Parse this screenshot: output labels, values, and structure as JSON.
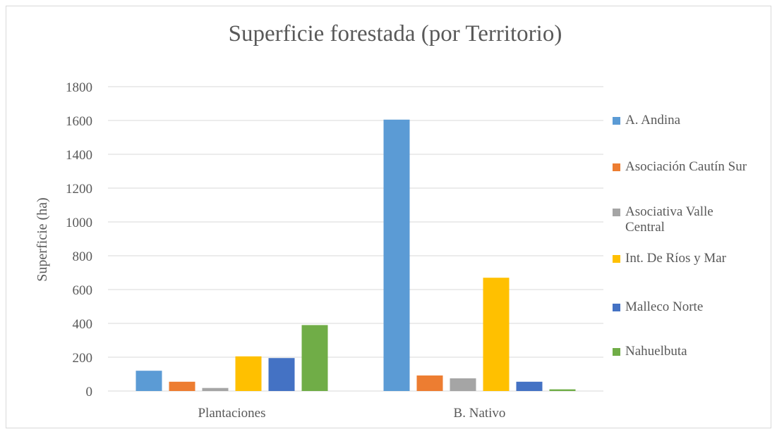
{
  "chart_data": {
    "type": "bar",
    "title": "Superficie forestada (por Territorio)",
    "y_label": "Superficie (ha)",
    "categories": [
      "Plantaciones",
      "B. Nativo"
    ],
    "series": [
      {
        "name": "A. Andina",
        "color": "#5b9bd5",
        "values": [
          120,
          1605
        ]
      },
      {
        "name": "Asociación Cautín Sur",
        "color": "#ed7d31",
        "values": [
          55,
          92
        ]
      },
      {
        "name": "Asociativa Valle Central",
        "color": "#a5a5a5",
        "values": [
          18,
          75
        ]
      },
      {
        "name": "Int. De Ríos y Mar",
        "color": "#ffc000",
        "values": [
          205,
          670
        ]
      },
      {
        "name": "Malleco Norte",
        "color": "#4472c4",
        "values": [
          195,
          55
        ]
      },
      {
        "name": "Nahuelbuta",
        "color": "#70ad47",
        "values": [
          390,
          10
        ]
      }
    ],
    "ylim": [
      0,
      1800
    ],
    "yticks": [
      0,
      200,
      400,
      600,
      800,
      1000,
      1200,
      1400,
      1600,
      1800
    ],
    "grid": true,
    "legend": "right"
  }
}
